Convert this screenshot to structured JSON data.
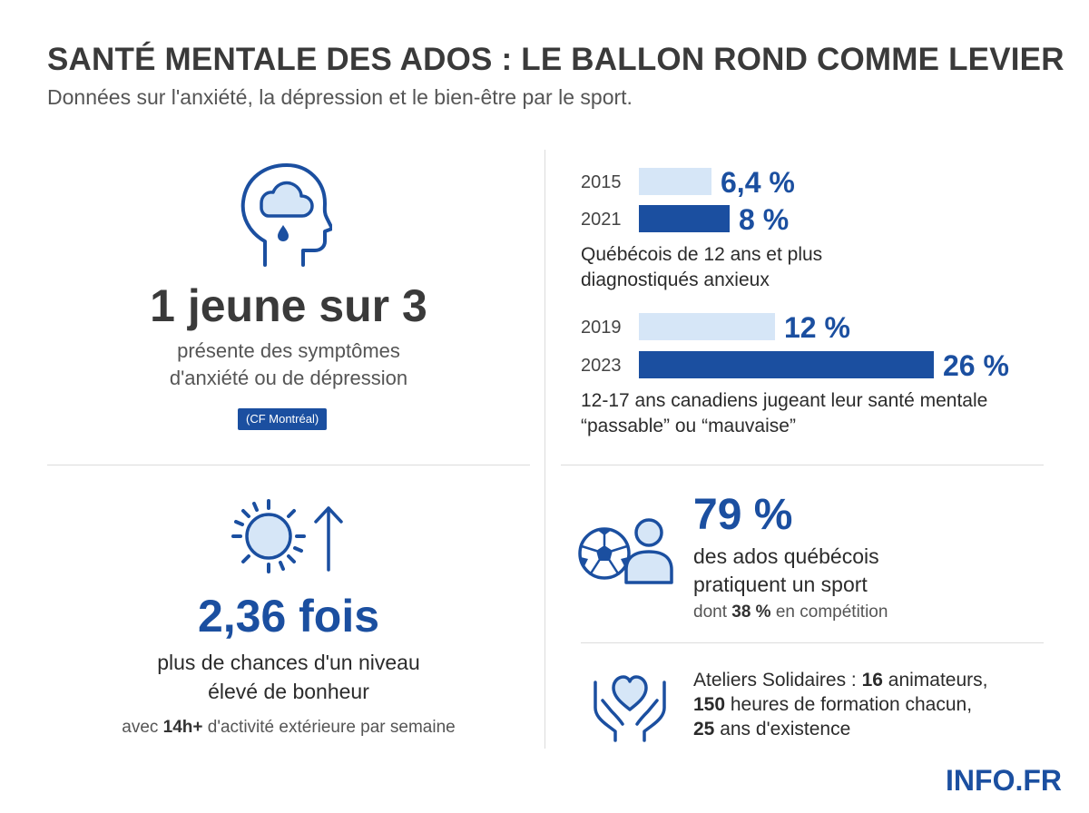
{
  "header": {
    "title": "SANTÉ MENTALE DES ADOS : LE BALLON ROND COMME LEVIER",
    "subtitle": "Données sur l'anxiété, la dépression et le bien-être par le sport."
  },
  "panel_anxiety": {
    "headline": "1 jeune sur 3",
    "line1": "présente des symptômes",
    "line2": "d'anxiété ou de dépression",
    "source": "(CF Montréal)",
    "icon": "head-cloud-rain-icon"
  },
  "panel_happiness": {
    "headline": "2,36 fois",
    "line1": "plus de chances d'un niveau",
    "line2": "élevé de bonheur",
    "note_pre": "avec ",
    "note_bold": "14h+",
    "note_post": " d'activité extérieure par semaine",
    "icon": "sun-arrow-up-icon"
  },
  "panel_sport": {
    "headline": "79 %",
    "line1": "des ados québécois",
    "line2": "pratiquent un sport",
    "note_pre": "dont ",
    "note_bold": "38 %",
    "note_post": " en compétition",
    "icon": "soccer-ball-person-icon"
  },
  "panel_ateliers": {
    "l1_pre": "Ateliers Solidaires : ",
    "l1_bold": "16",
    "l1_post": " animateurs,",
    "l2_bold": "150",
    "l2_post": " heures de formation chacun,",
    "l3_bold": "25",
    "l3_post": " ans d'existence",
    "icon": "hands-heart-icon"
  },
  "brand": "INFO.FR",
  "colors": {
    "accent": "#1b4fa0",
    "light_bar": "#d6e6f7",
    "text": "#2b2b2b"
  },
  "chart_data": [
    {
      "type": "bar",
      "orientation": "horizontal",
      "categories": [
        "2015",
        "2021"
      ],
      "values": [
        6.4,
        8
      ],
      "value_labels": [
        "6,4 %",
        "8 %"
      ],
      "caption_line1": "Québécois de 12 ans et plus",
      "caption_line2": "diagnostiqués anxieux"
    },
    {
      "type": "bar",
      "orientation": "horizontal",
      "categories": [
        "2019",
        "2023"
      ],
      "values": [
        12,
        26
      ],
      "value_labels": [
        "12 %",
        "26 %"
      ],
      "caption_line1": "12-17 ans canadiens jugeant leur santé mentale",
      "caption_line2": "“passable” ou “mauvaise”"
    }
  ]
}
